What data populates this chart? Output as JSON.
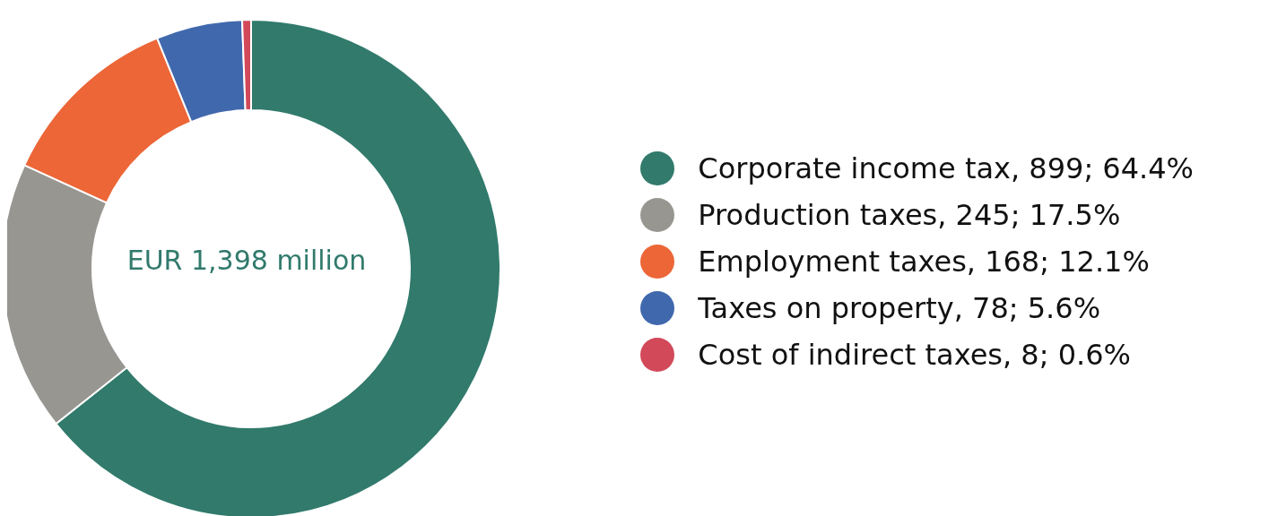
{
  "chart_data": {
    "type": "donut",
    "categories": [
      "Corporate income tax, 899; 64.4%",
      "Production taxes, 245; 17.5%",
      "Employment taxes, 168; 12.1%",
      "Taxes on property, 78; 5.6%",
      "Cost of indirect taxes, 8; 0.6%"
    ],
    "values": [
      899,
      245,
      168,
      78,
      8
    ],
    "colors": [
      "#317a6c",
      "#989690",
      "#ec6638",
      "#4068ad",
      "#d2495a"
    ],
    "annotations": [
      "EUR 1,398 million"
    ],
    "legend": "right"
  }
}
